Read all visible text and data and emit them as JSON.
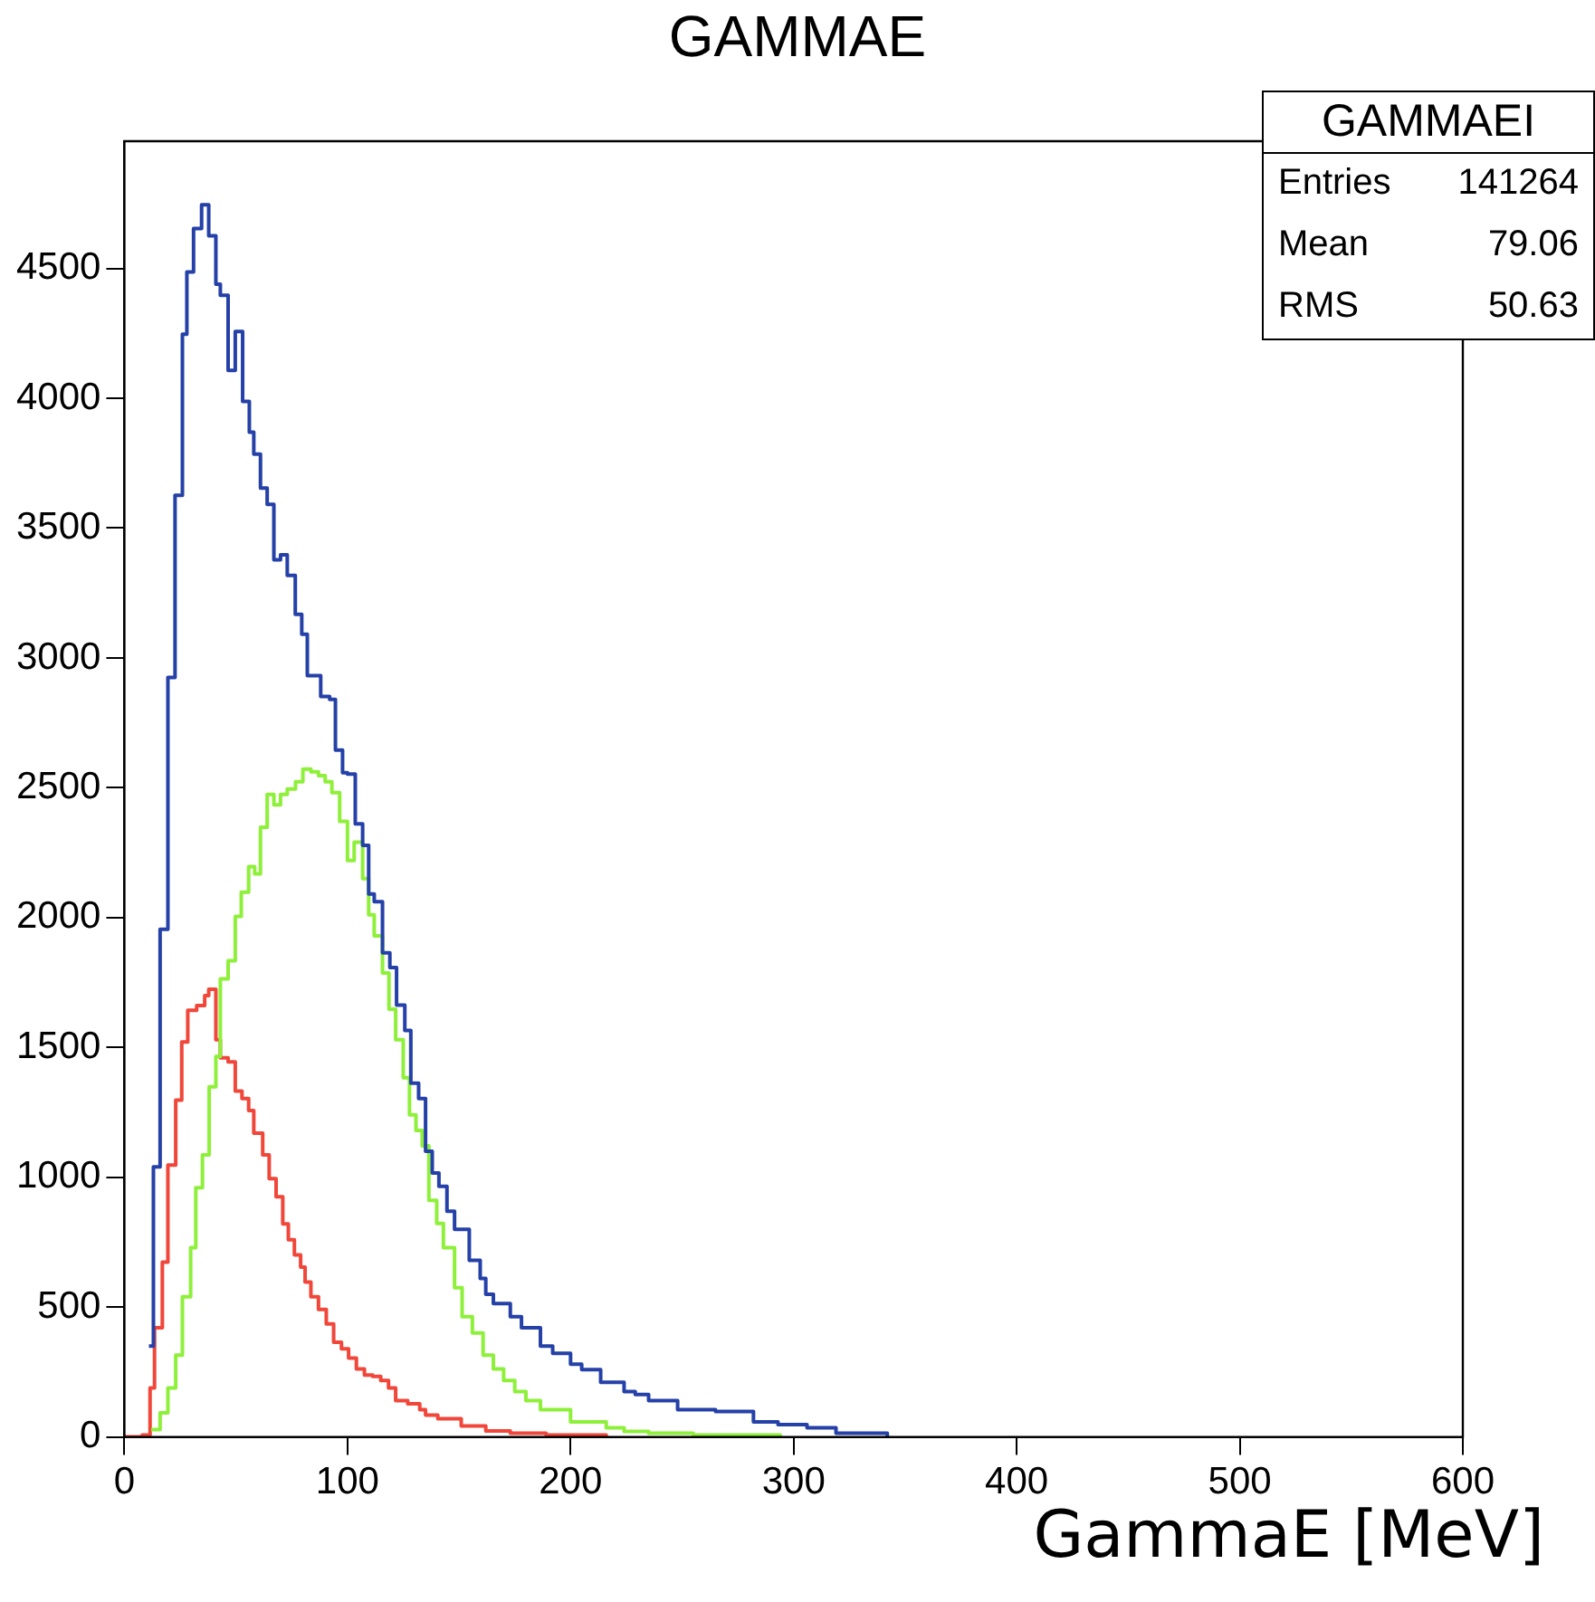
{
  "chart_data": {
    "type": "step",
    "title": "GAMMAE",
    "xlabel": "GammaE [MeV]",
    "annotations": [
      "GAMMAEI",
      "Entries",
      "141264",
      "Mean",
      "79.06",
      "RMS",
      "50.63"
    ],
    "xlim": [
      0,
      600
    ],
    "xticks": [
      0,
      100,
      200,
      300,
      400,
      500,
      600
    ],
    "ylim": [
      0,
      4990
    ],
    "yticks": [
      0,
      500,
      1000,
      1500,
      2000,
      2500,
      3000,
      3500,
      4000,
      4500
    ],
    "grid": false,
    "legend": false,
    "marker": "none",
    "line_style": "solid",
    "series": [
      {
        "color": "#2541a8",
        "x": [
          11,
          13,
          16,
          19.5,
          22.7,
          26,
          28,
          31,
          34.6,
          37.8,
          41,
          43,
          46.5,
          49.7,
          53,
          56,
          58,
          61,
          64,
          67,
          70,
          73,
          76.6,
          79.5,
          82,
          88,
          92,
          94.6,
          97.8,
          100,
          103.5,
          106.8,
          109.5,
          112,
          115.7,
          119,
          122,
          125.7,
          128.4,
          131.9,
          135,
          138,
          141,
          144.6,
          148,
          151,
          154.6,
          159.5,
          162,
          165.4,
          169.7,
          173,
          178,
          186.5,
          192,
          200,
          205,
          213.5,
          224,
          229,
          235,
          248,
          265,
          282,
          293,
          306,
          319,
          342
        ],
        "values": [
          350,
          1040,
          1955,
          2925,
          3626,
          4247,
          4486,
          4654,
          4745,
          4626,
          4439,
          4397,
          4107,
          4257,
          3988,
          3869,
          3785,
          3654,
          3591,
          3378,
          3397,
          3318,
          3168,
          3091,
          2932,
          2852,
          2840,
          2645,
          2558,
          2553,
          2361,
          2278,
          2091,
          2061,
          1864,
          1808,
          1663,
          1565,
          1362,
          1303,
          1100,
          1016,
          965,
          869,
          799,
          799,
          680,
          610,
          549,
          514,
          514,
          463,
          420,
          350,
          322,
          280,
          259,
          210,
          175,
          163,
          140,
          105,
          98,
          58,
          47,
          35,
          14,
          0
        ]
      },
      {
        "color": "#8ef03a",
        "x": [
          12,
          16,
          19.5,
          23,
          26,
          29.7,
          32,
          35,
          38,
          41,
          43,
          46.5,
          49.7,
          52.4,
          55.7,
          58.4,
          61,
          64,
          67,
          70,
          73,
          76.7,
          80,
          83.6,
          87,
          90,
          93,
          96.5,
          100,
          103,
          106.8,
          109.5,
          112,
          115.7,
          118.6,
          121.6,
          125,
          127.8,
          130.7,
          133.5,
          136.5,
          140,
          143,
          148,
          151.4,
          156,
          160.8,
          165.4,
          170,
          175,
          180,
          186.5,
          200,
          216,
          224,
          235,
          255,
          294
        ],
        "values": [
          28,
          93,
          189,
          315,
          540,
          729,
          960,
          1086,
          1348,
          1465,
          1764,
          1834,
          2005,
          2098,
          2196,
          2168,
          2348,
          2474,
          2434,
          2474,
          2495,
          2523,
          2572,
          2561,
          2547,
          2523,
          2481,
          2371,
          2220,
          2290,
          2150,
          2011,
          1930,
          1787,
          1647,
          1530,
          1383,
          1240,
          1180,
          1121,
          911,
          822,
          729,
          575,
          463,
          400,
          315,
          262,
          217,
          175,
          140,
          105,
          58,
          35,
          21,
          14,
          7,
          0
        ]
      },
      {
        "color": "#f0473a",
        "x": [
          0,
          8,
          11.5,
          13.5,
          17,
          19.5,
          23,
          25.7,
          28.4,
          32.4,
          36,
          37.8,
          41,
          43,
          46.5,
          49.7,
          52.7,
          55.7,
          58,
          62,
          64.9,
          68,
          71,
          73.5,
          76.2,
          79,
          81,
          83.6,
          87,
          90.5,
          93.8,
          97.3,
          100.5,
          104,
          107.6,
          111.3,
          114.9,
          118.4,
          121.6,
          127,
          132.4,
          135,
          140.5,
          144,
          151,
          162,
          173,
          189,
          216
        ],
        "values": [
          0,
          7,
          189,
          420,
          673,
          1047,
          1297,
          1521,
          1643,
          1661,
          1700,
          1724,
          1530,
          1460,
          1444,
          1332,
          1303,
          1257,
          1170,
          1086,
          995,
          925,
          820,
          759,
          701,
          654,
          596,
          540,
          491,
          435,
          365,
          339,
          304,
          262,
          238,
          233,
          217,
          189,
          140,
          128,
          105,
          84,
          70,
          70,
          42,
          23,
          14,
          7,
          0
        ]
      }
    ]
  }
}
